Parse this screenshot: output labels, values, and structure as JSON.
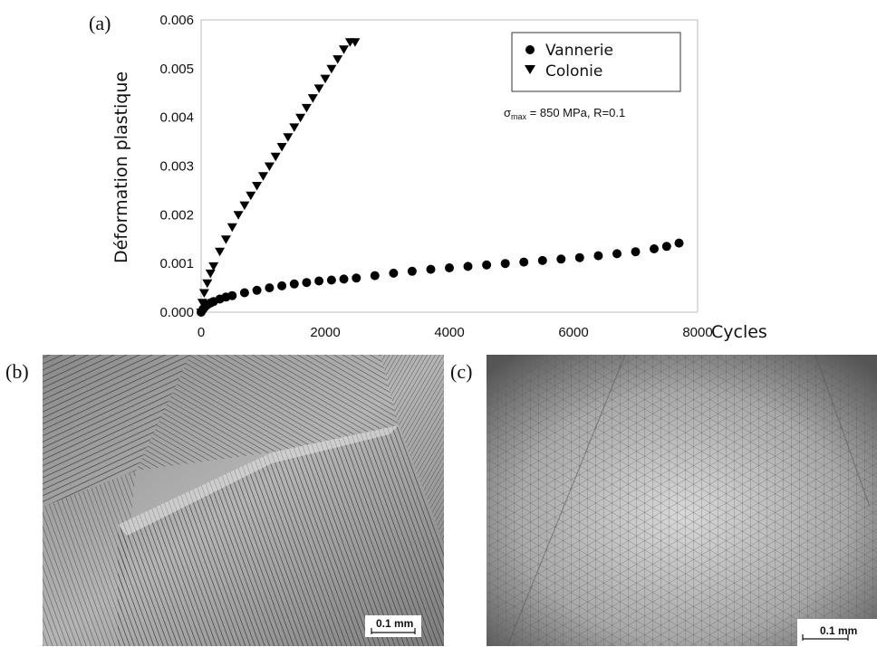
{
  "panels": {
    "a": "(a)",
    "b": "(b)",
    "c": "(c)"
  },
  "chart_data": {
    "type": "scatter",
    "xlabel": "Cycles",
    "ylabel": "Déformation plastique",
    "xlim": [
      0,
      8000
    ],
    "ylim": [
      0,
      0.006
    ],
    "x_ticks": [
      "0",
      "2000",
      "4000",
      "6000",
      "8000"
    ],
    "y_ticks": [
      "0.000",
      "0.001",
      "0.002",
      "0.003",
      "0.004",
      "0.005",
      "0.006"
    ],
    "annotation": {
      "sigma": "σ",
      "sub": "max",
      "rest": " = 850 MPa, R=0.1"
    },
    "legend_position": "top-right",
    "series": [
      {
        "name": "Vannerie",
        "marker": "circle",
        "x": [
          0,
          30,
          60,
          100,
          150,
          200,
          300,
          400,
          500,
          700,
          900,
          1100,
          1300,
          1500,
          1700,
          1900,
          2100,
          2300,
          2500,
          2800,
          3100,
          3400,
          3700,
          4000,
          4300,
          4600,
          4900,
          5200,
          5500,
          5800,
          6100,
          6400,
          6700,
          7000,
          7300,
          7500,
          7700
        ],
        "y": [
          0.0,
          6e-05,
          0.00011,
          0.00015,
          0.00019,
          0.00022,
          0.00027,
          0.00031,
          0.00034,
          0.0004,
          0.00045,
          0.0005,
          0.00054,
          0.00058,
          0.00061,
          0.00064,
          0.00066,
          0.00068,
          0.0007,
          0.00075,
          0.0008,
          0.00084,
          0.00088,
          0.00091,
          0.00094,
          0.00097,
          0.001,
          0.00103,
          0.00106,
          0.00109,
          0.00112,
          0.00116,
          0.0012,
          0.00124,
          0.0013,
          0.00135,
          0.00142
        ]
      },
      {
        "name": "Colonie",
        "marker": "triangle-down",
        "x": [
          0,
          20,
          50,
          100,
          150,
          200,
          300,
          400,
          500,
          600,
          700,
          800,
          900,
          1000,
          1100,
          1200,
          1300,
          1400,
          1500,
          1600,
          1700,
          1800,
          1900,
          2000,
          2100,
          2200,
          2300,
          2400,
          2480
        ],
        "y": [
          0.0,
          0.0002,
          0.0004,
          0.0006,
          0.0008,
          0.00095,
          0.00125,
          0.0015,
          0.00175,
          0.002,
          0.0022,
          0.0024,
          0.0026,
          0.0028,
          0.003,
          0.0032,
          0.0034,
          0.0036,
          0.0038,
          0.004,
          0.0042,
          0.0044,
          0.0046,
          0.0048,
          0.005,
          0.0052,
          0.0054,
          0.00555,
          0.00555
        ]
      }
    ]
  },
  "micrographs": {
    "b": {
      "scale_label": "0.1 mm",
      "scale_mm": 0.1
    },
    "c": {
      "scale_label": "0.1 mm",
      "scale_mm": 0.1
    }
  }
}
